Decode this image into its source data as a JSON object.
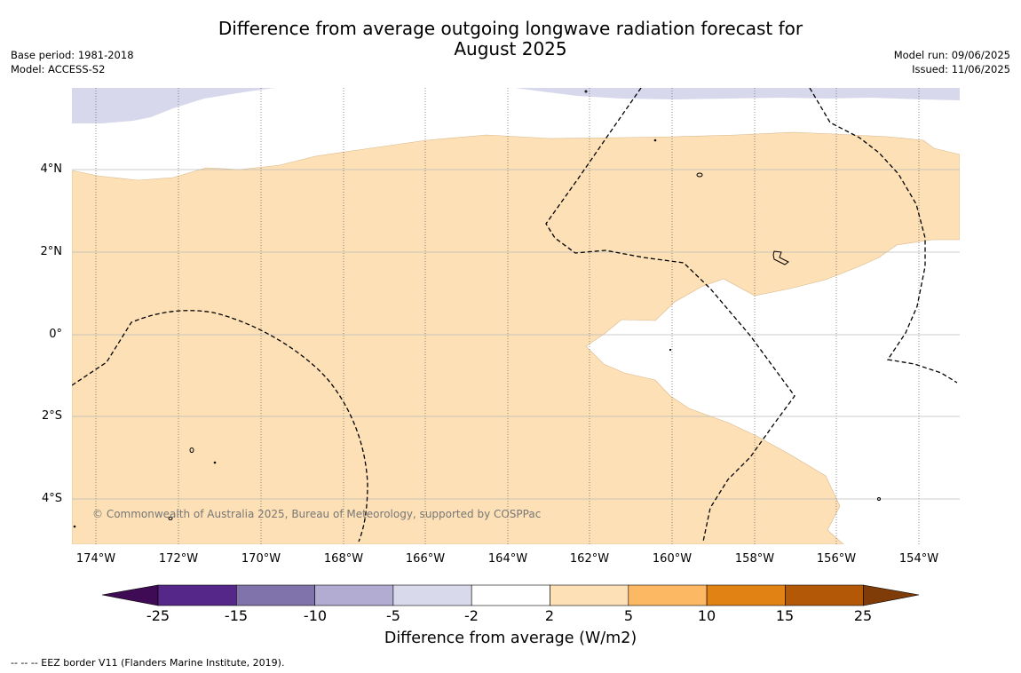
{
  "header": {
    "title_line1": "Difference from average outgoing longwave radiation forecast for",
    "title_line2": "August 2025",
    "base_period": "Base period: 1981-2018",
    "model": "Model: ACCESS-S2",
    "model_run": "Model run: 09/06/2025",
    "issued": "Issued: 11/06/2025"
  },
  "map": {
    "copyright": "© Commonwealth of Australia 2025, Bureau of Meteorology, supported by COSPPac",
    "lat_labels": [
      "4°N",
      "2°N",
      "0°",
      "2°S",
      "4°S"
    ],
    "lon_labels": [
      "174°W",
      "172°W",
      "170°W",
      "168°W",
      "166°W",
      "164°W",
      "162°W",
      "160°W",
      "158°W",
      "156°W",
      "154°W"
    ],
    "colors": {
      "band_2_5": "#fde0b6",
      "band_neg5_neg2": "#d8d8ec",
      "neutral": "#ffffff"
    }
  },
  "colorbar": {
    "title": "Difference from average (W/m2)",
    "ticks": [
      "-25",
      "-15",
      "-10",
      "-5",
      "-2",
      "2",
      "5",
      "10",
      "15",
      "25"
    ],
    "colors": [
      "#3f0b54",
      "#542788",
      "#8073ac",
      "#b2abd2",
      "#d8daeb",
      "#ffffff",
      "#fee0b6",
      "#fdb863",
      "#e08214",
      "#b35806",
      "#7f3b08"
    ]
  },
  "footer": {
    "legend_text": "--  --  -- EEZ border V11 (Flanders Marine Institute, 2019)."
  }
}
